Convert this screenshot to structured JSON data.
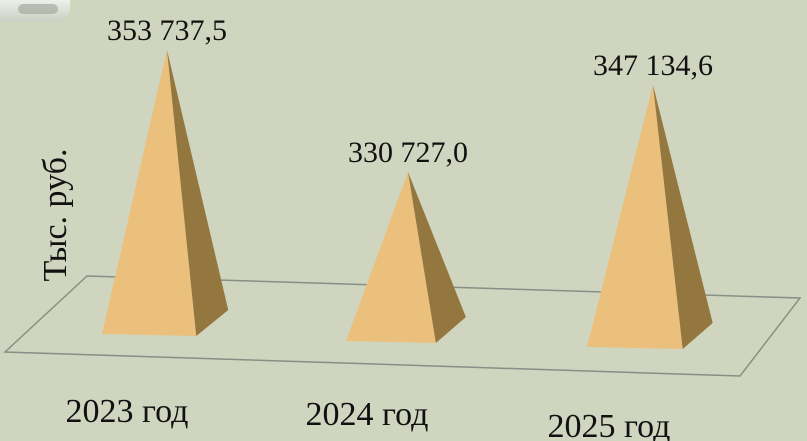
{
  "chart_data": {
    "type": "bar",
    "style": "3d-pyramid",
    "categories": [
      "2023 год",
      "2024 год",
      "2025 год"
    ],
    "values": [
      353737.5,
      330727.0,
      347134.6
    ],
    "value_labels": [
      "353 737,5",
      "330 727,0",
      "347 134,6"
    ],
    "ylabel": "Тыс. руб.",
    "xlabel": "",
    "title": "",
    "grid": false,
    "legend": "none"
  },
  "colors": {
    "background": "#cfd5bf",
    "pyramid_light": "#ebc07c",
    "pyramid_dark": "#94773f",
    "floor_line": "#8a8f86"
  }
}
